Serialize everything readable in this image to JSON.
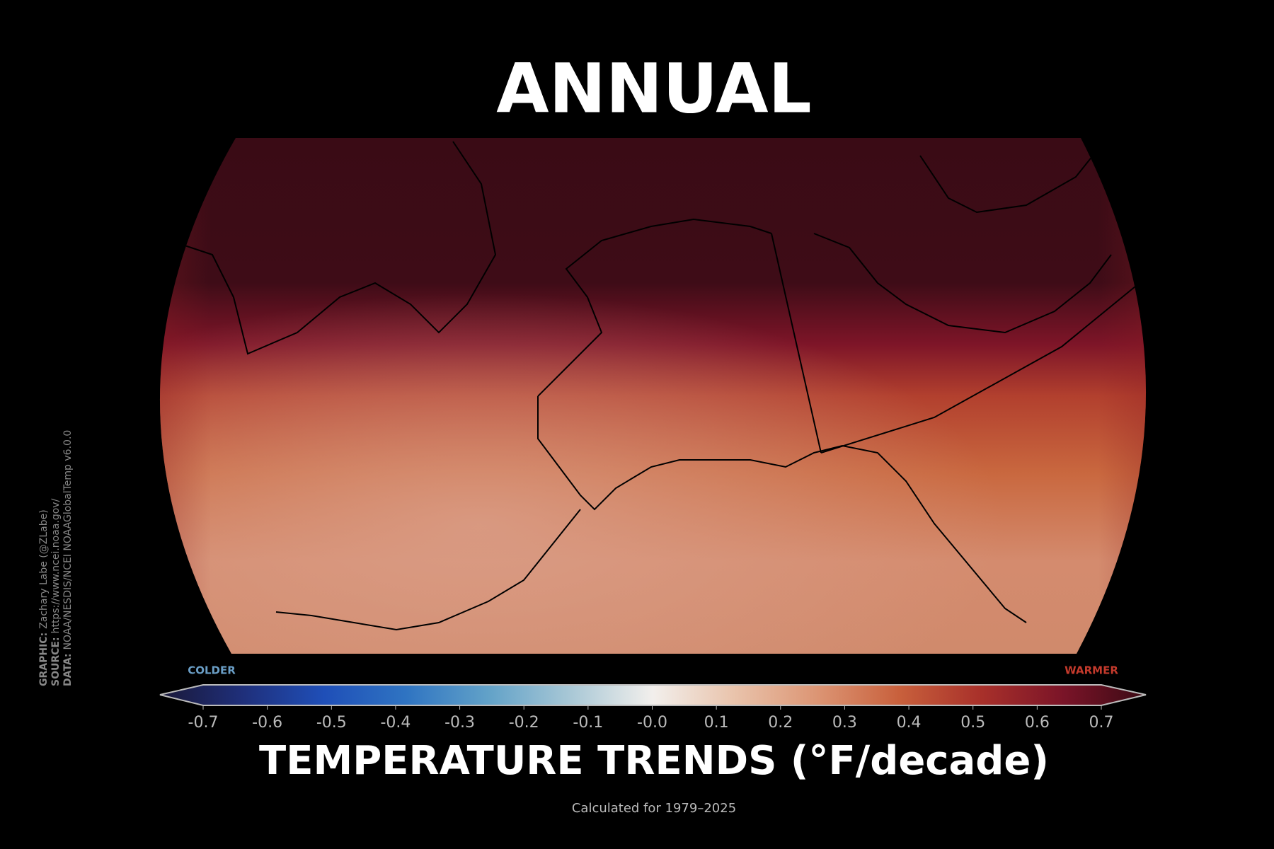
{
  "title": "ANNUAL",
  "colorbar": {
    "zlim": [
      -0.7,
      0.7
    ],
    "ticks": [
      -0.7,
      -0.6,
      -0.5,
      -0.4,
      -0.3,
      -0.2,
      -0.1,
      {
        "value": 0,
        "label": "-0.0"
      },
      0.1,
      0.2,
      0.3,
      0.4,
      0.5,
      0.6,
      0.7
    ],
    "colormap": [
      "#1a1838",
      "#1f2f7a",
      "#1f4fb8",
      "#2f74c2",
      "#62a2c8",
      "#a9c8d6",
      "#f2efec",
      "#e9c3ab",
      "#dc9574",
      "#c8603c",
      "#a8302a",
      "#7a1428",
      "#3a0a14"
    ],
    "low_label": "COLDER",
    "low_color": "#6a9ec6",
    "high_label": "WARMER",
    "high_color": "#c43a2c",
    "label": "TEMPERATURE TRENDS (°F/decade)"
  },
  "subtitle": "Calculated for 1979–2025",
  "credits": [
    {
      "key": "GRAPHIC:",
      "text": "Zachary Labe (@ZLabe)"
    },
    {
      "key": "SOURCE:",
      "text": "https://www.ncei.noaa.gov/"
    },
    {
      "key": "DATA:",
      "text": "NOAA/NESDIS/NCEI NOAAGlobalTemp v6.0.0"
    }
  ]
}
